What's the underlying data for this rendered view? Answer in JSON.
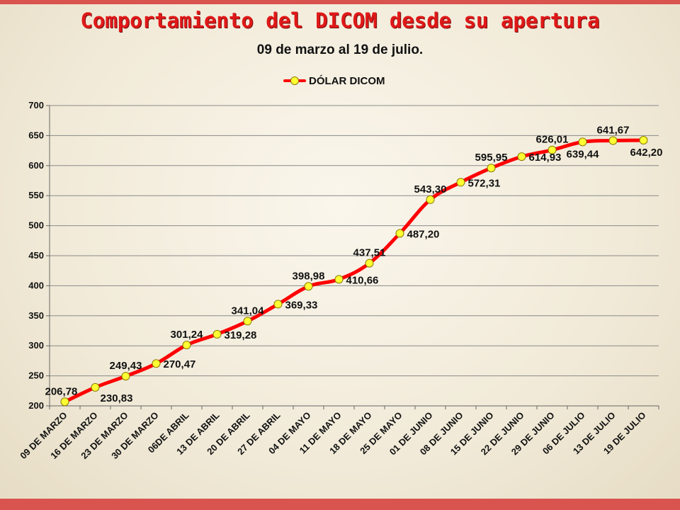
{
  "slide": {
    "title": "Comportamiento del DICOM desde su apertura",
    "subtitle": "09 de marzo al 19 de julio."
  },
  "chart_data": {
    "type": "line",
    "title": "Comportamiento del DICOM desde su apertura",
    "subtitle": "09 de marzo al 19 de julio.",
    "xlabel": "",
    "ylabel": "",
    "ylim": [
      200,
      700
    ],
    "yticks": [
      200,
      250,
      300,
      350,
      400,
      450,
      500,
      550,
      600,
      650,
      700
    ],
    "grid": true,
    "legend_position": "top",
    "categories": [
      "09 DE MARZO",
      "16 DE MARZO",
      "23 DE MARZO",
      "30 DE MARZO",
      "06DE ABRIL",
      "13 DE ABRIL",
      "20 DE ABRIL",
      "27 DE ABRIL",
      "04 DE MAYO",
      "11 DE MAYO",
      "18 DE MAYO",
      "25 DE MAYO",
      "01 DE JUNIO",
      "08 DE JUNIO",
      "15 DE JUNIO",
      "22 DE JUNIO",
      "29 DE JUNIO",
      "06 DE JULIO",
      "13 DE JULIO",
      "19 DE JULIO"
    ],
    "series": [
      {
        "name": "DÓLAR DICOM",
        "color": "#ff0000",
        "marker_color": "#ffff33",
        "values": [
          206.78,
          230.83,
          249.43,
          270.47,
          301.24,
          319.28,
          341.04,
          369.33,
          398.98,
          410.66,
          437.51,
          487.2,
          543.3,
          572.31,
          595.95,
          614.93,
          626.01,
          639.44,
          641.67,
          642.2
        ],
        "labels": [
          "206,78",
          "230,83",
          "249,43",
          "270,47",
          "301,24",
          "319,28",
          "341,04",
          "369,33",
          "398,98",
          "410,66",
          "437,51",
          "487,20",
          "543,30",
          "572,31",
          "595,95",
          "614,93",
          "626,01",
          "639,44",
          "641,67",
          "642,20"
        ],
        "label_positions": [
          "above",
          "below",
          "above",
          "right",
          "above",
          "right",
          "above",
          "right",
          "above",
          "right",
          "above",
          "right",
          "above",
          "right",
          "above",
          "right",
          "above",
          "below",
          "above",
          "below"
        ]
      }
    ]
  }
}
